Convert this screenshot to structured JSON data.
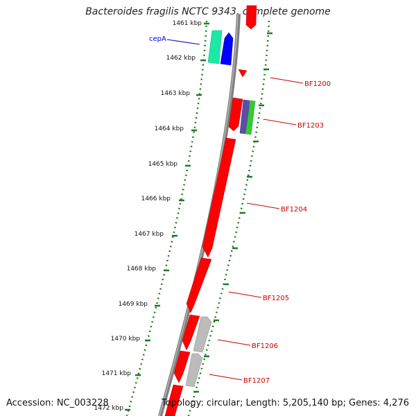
{
  "title": "Bacteroides fragilis NCTC 9343, complete genome",
  "footer": {
    "accession": "Accession: NC_003228",
    "topology": "Topology: circular; Length: 5,205,140 bp; Genes: 4,276"
  },
  "colors": {
    "ruler": "#1f7a1f",
    "backbone": "#808080",
    "gene_red": "#ff0000",
    "gene_blue": "#0000ff",
    "gene_teal": "#1de9a6",
    "gene_purple": "#5b4ea8",
    "gene_green": "#33cc33",
    "gene_grey": "#bbbbbb",
    "label_red": "#cc0000",
    "label_blue": "#0000cc"
  },
  "ruler_labels": [
    "1461 kbp",
    "1462 kbp",
    "1463 kbp",
    "1464 kbp",
    "1465 kbp",
    "1466 kbp",
    "1467 kbp",
    "1468 kbp",
    "1469 kbp",
    "1470 kbp",
    "1471 kbp",
    "1472 kbp"
  ],
  "gene_labels": [
    "cepA",
    "BF1200",
    "BF1203",
    "BF1204",
    "BF1205",
    "BF1206",
    "BF1207"
  ]
}
